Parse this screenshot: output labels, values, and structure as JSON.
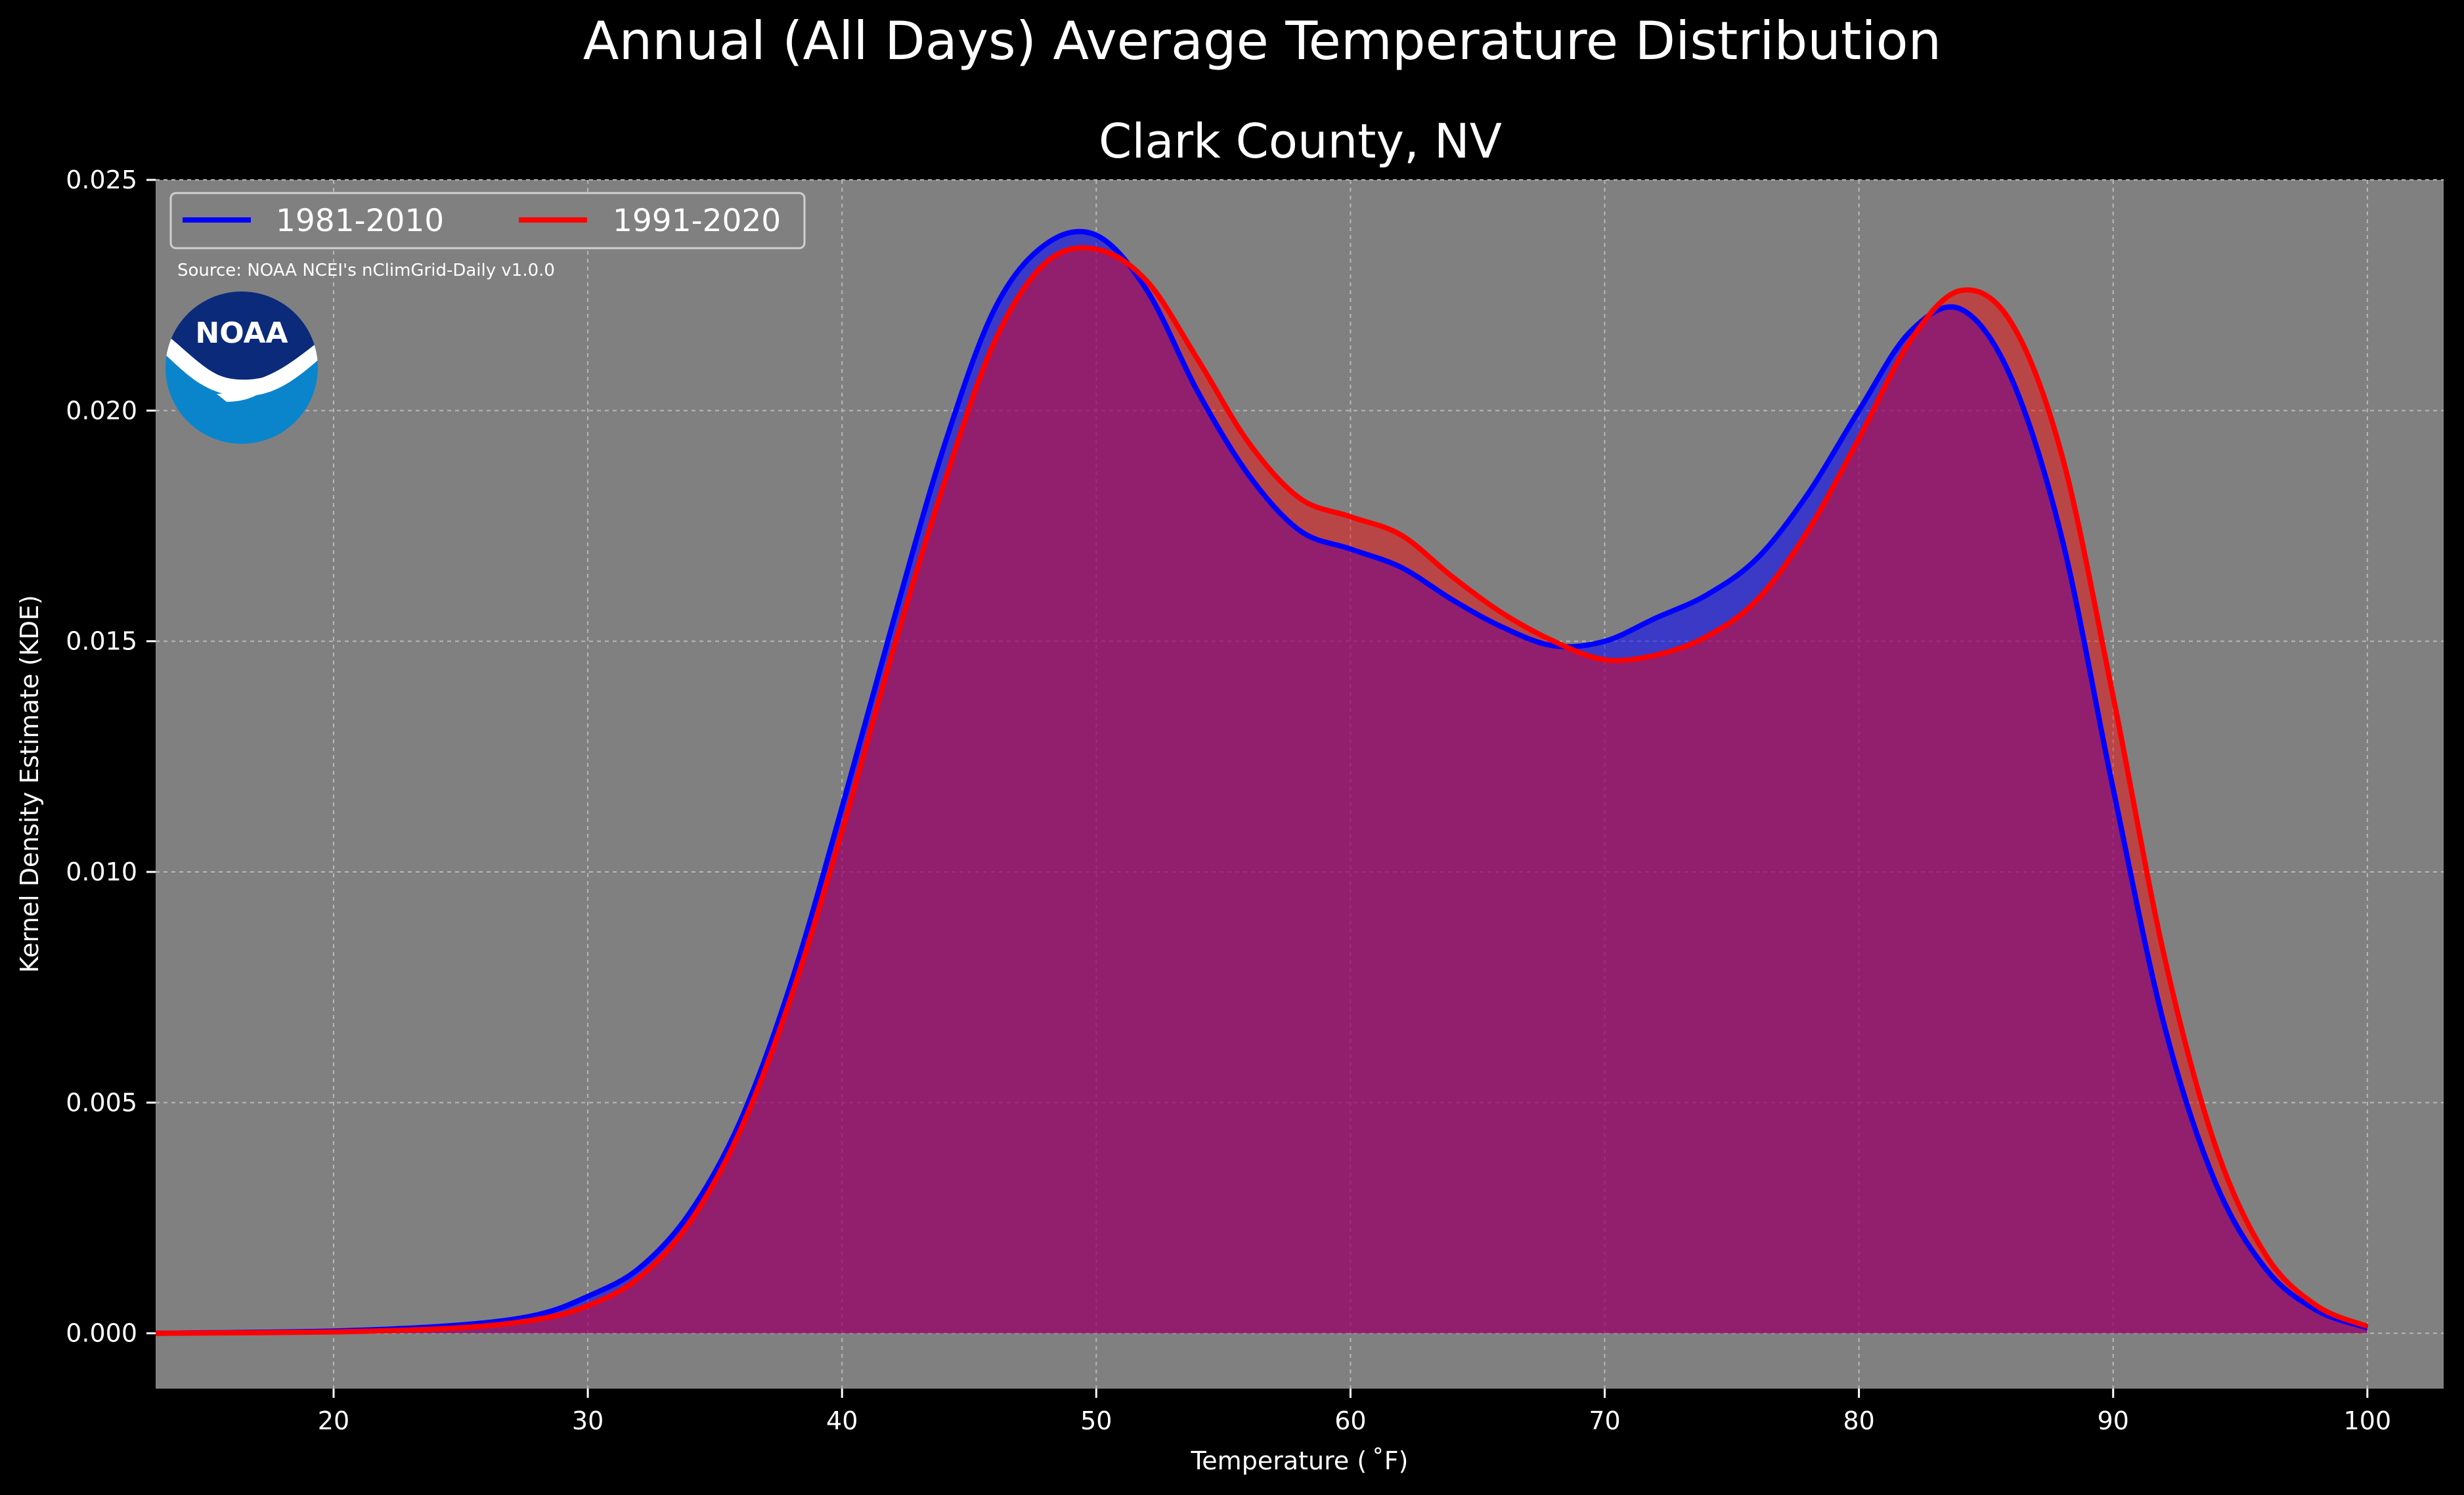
{
  "chart_data": {
    "type": "area",
    "title": "Annual (All Days) Average Temperature Distribution",
    "subtitle": "Clark County, NV",
    "xlabel": "Temperature ($^\\circ$F)",
    "xlabel_display": "Temperature ( ˚F)",
    "ylabel": "Kernel Density Estimate (KDE)",
    "xlim": [
      13,
      103
    ],
    "ylim": [
      -0.0012,
      0.025
    ],
    "xticks": [
      20,
      30,
      40,
      50,
      60,
      70,
      80,
      90,
      100
    ],
    "xtick_labels": [
      "20",
      "30",
      "40",
      "50",
      "60",
      "70",
      "80",
      "90",
      "100"
    ],
    "yticks": [
      0.0,
      0.005,
      0.01,
      0.015,
      0.02,
      0.025
    ],
    "ytick_labels": [
      "0.000",
      "0.005",
      "0.010",
      "0.015",
      "0.020",
      "0.025"
    ],
    "grid": true,
    "legend_position": "top-left",
    "source": "Source: NOAA NCEI's nClimGrid-Daily v1.0.0",
    "logo_text": "NOAA",
    "colors": {
      "figure_background": "#000000",
      "axes_background": "#808080",
      "series_1": "#0000ff",
      "series_2": "#ff0000",
      "overlap_fill": "#9e1e5c"
    },
    "series": [
      {
        "name": "1981-2010",
        "color": "#0000ff",
        "x": [
          13,
          20,
          25,
          28,
          30,
          32,
          34,
          36,
          38,
          40,
          42,
          44,
          46,
          48,
          50,
          52,
          54,
          56,
          58,
          60,
          62,
          64,
          66,
          68,
          70,
          72,
          74,
          76,
          78,
          80,
          82,
          84,
          86,
          88,
          90,
          92,
          94,
          96,
          98,
          100
        ],
        "y": [
          0.0,
          5e-05,
          0.00018,
          0.0004,
          0.0008,
          0.0014,
          0.0026,
          0.0046,
          0.0076,
          0.0114,
          0.0154,
          0.0192,
          0.0222,
          0.0236,
          0.0238,
          0.0226,
          0.0204,
          0.0186,
          0.0174,
          0.017,
          0.0166,
          0.0159,
          0.0153,
          0.0149,
          0.015,
          0.0155,
          0.016,
          0.0168,
          0.0182,
          0.02,
          0.0217,
          0.0222,
          0.0207,
          0.0172,
          0.0118,
          0.0067,
          0.0033,
          0.0014,
          0.0005,
          0.00012
        ]
      },
      {
        "name": "1991-2020",
        "color": "#ff0000",
        "x": [
          13,
          20,
          25,
          28,
          30,
          32,
          34,
          36,
          38,
          40,
          42,
          44,
          46,
          48,
          50,
          52,
          54,
          56,
          58,
          60,
          62,
          64,
          66,
          68,
          70,
          72,
          74,
          76,
          78,
          80,
          82,
          84,
          86,
          88,
          90,
          92,
          94,
          96,
          98,
          100
        ],
        "y": [
          0.0,
          3e-05,
          0.00012,
          0.0003,
          0.0006,
          0.0012,
          0.0024,
          0.0044,
          0.0073,
          0.0109,
          0.0148,
          0.0184,
          0.0215,
          0.0232,
          0.0235,
          0.0228,
          0.0211,
          0.0193,
          0.0181,
          0.0177,
          0.0173,
          0.0164,
          0.0156,
          0.015,
          0.0146,
          0.0147,
          0.0151,
          0.0159,
          0.0174,
          0.0194,
          0.0215,
          0.0226,
          0.0219,
          0.019,
          0.0138,
          0.0082,
          0.0041,
          0.0017,
          0.0006,
          0.00015
        ]
      }
    ]
  }
}
